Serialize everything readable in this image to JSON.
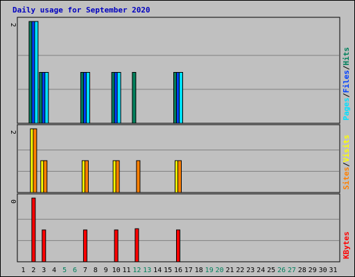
{
  "chart_data": {
    "type": "bar",
    "title": "Daily usage for September 2020",
    "x": [
      "1",
      "2",
      "3",
      "4",
      "5",
      "6",
      "7",
      "8",
      "9",
      "10",
      "11",
      "12",
      "13",
      "14",
      "15",
      "16",
      "17",
      "18",
      "19",
      "20",
      "21",
      "22",
      "23",
      "24",
      "25",
      "26",
      "27",
      "28",
      "29",
      "30",
      "31"
    ],
    "weekend_days": [
      "5",
      "6",
      "12",
      "13",
      "19",
      "20",
      "26",
      "27"
    ],
    "panels": [
      {
        "axis_max_label": "2",
        "ylim": [
          0,
          2
        ],
        "legend": [
          "Pages",
          "Files",
          "Hits"
        ],
        "legend_colors": [
          "#00e0ff",
          "#0040ff",
          "#00805c"
        ],
        "series": [
          {
            "name": "Hits",
            "color": "#00805c",
            "values": [
              0,
              2,
              1,
              0,
              0,
              0,
              1,
              0,
              0,
              1,
              0,
              1,
              0,
              0,
              0,
              1,
              0,
              0,
              0,
              0,
              0,
              0,
              0,
              0,
              0,
              0,
              0,
              0,
              0,
              0,
              0
            ]
          },
          {
            "name": "Files",
            "color": "#0040ff",
            "values": [
              0,
              2,
              1,
              0,
              0,
              0,
              1,
              0,
              0,
              1,
              0,
              0,
              0,
              0,
              0,
              1,
              0,
              0,
              0,
              0,
              0,
              0,
              0,
              0,
              0,
              0,
              0,
              0,
              0,
              0,
              0
            ]
          },
          {
            "name": "Pages",
            "color": "#00e0ff",
            "values": [
              0,
              2,
              1,
              0,
              0,
              0,
              1,
              0,
              0,
              1,
              0,
              0,
              0,
              0,
              0,
              1,
              0,
              0,
              0,
              0,
              0,
              0,
              0,
              0,
              0,
              0,
              0,
              0,
              0,
              0,
              0
            ]
          }
        ]
      },
      {
        "axis_max_label": "2",
        "ylim": [
          0,
          2
        ],
        "legend": [
          "Sites",
          "Visits"
        ],
        "legend_colors": [
          "#ff8000",
          "#ffff00"
        ],
        "series": [
          {
            "name": "Visits",
            "color": "#ffff00",
            "values": [
              0,
              2,
              1,
              0,
              0,
              0,
              1,
              0,
              0,
              1,
              0,
              0,
              0,
              0,
              0,
              1,
              0,
              0,
              0,
              0,
              0,
              0,
              0,
              0,
              0,
              0,
              0,
              0,
              0,
              0,
              0
            ]
          },
          {
            "name": "Sites",
            "color": "#ff8000",
            "values": [
              0,
              2,
              1,
              0,
              0,
              0,
              1,
              0,
              0,
              1,
              0,
              1,
              0,
              0,
              0,
              1,
              0,
              0,
              0,
              0,
              0,
              0,
              0,
              0,
              0,
              0,
              0,
              0,
              0,
              0,
              0
            ]
          }
        ]
      },
      {
        "axis_max_label": "0",
        "ylim": [
          0,
          2.6
        ],
        "legend": [
          "KBytes"
        ],
        "legend_colors": [
          "#ff0000"
        ],
        "series": [
          {
            "name": "KBytes",
            "color": "#ff0000",
            "values": [
              0,
              2.6,
              1.3,
              0,
              0,
              0,
              1.3,
              0,
              0,
              1.3,
              0,
              1.35,
              0,
              0,
              0,
              1.3,
              0,
              0,
              0,
              0,
              0,
              0,
              0,
              0,
              0,
              0,
              0,
              0,
              0,
              0,
              0
            ]
          }
        ]
      }
    ]
  }
}
